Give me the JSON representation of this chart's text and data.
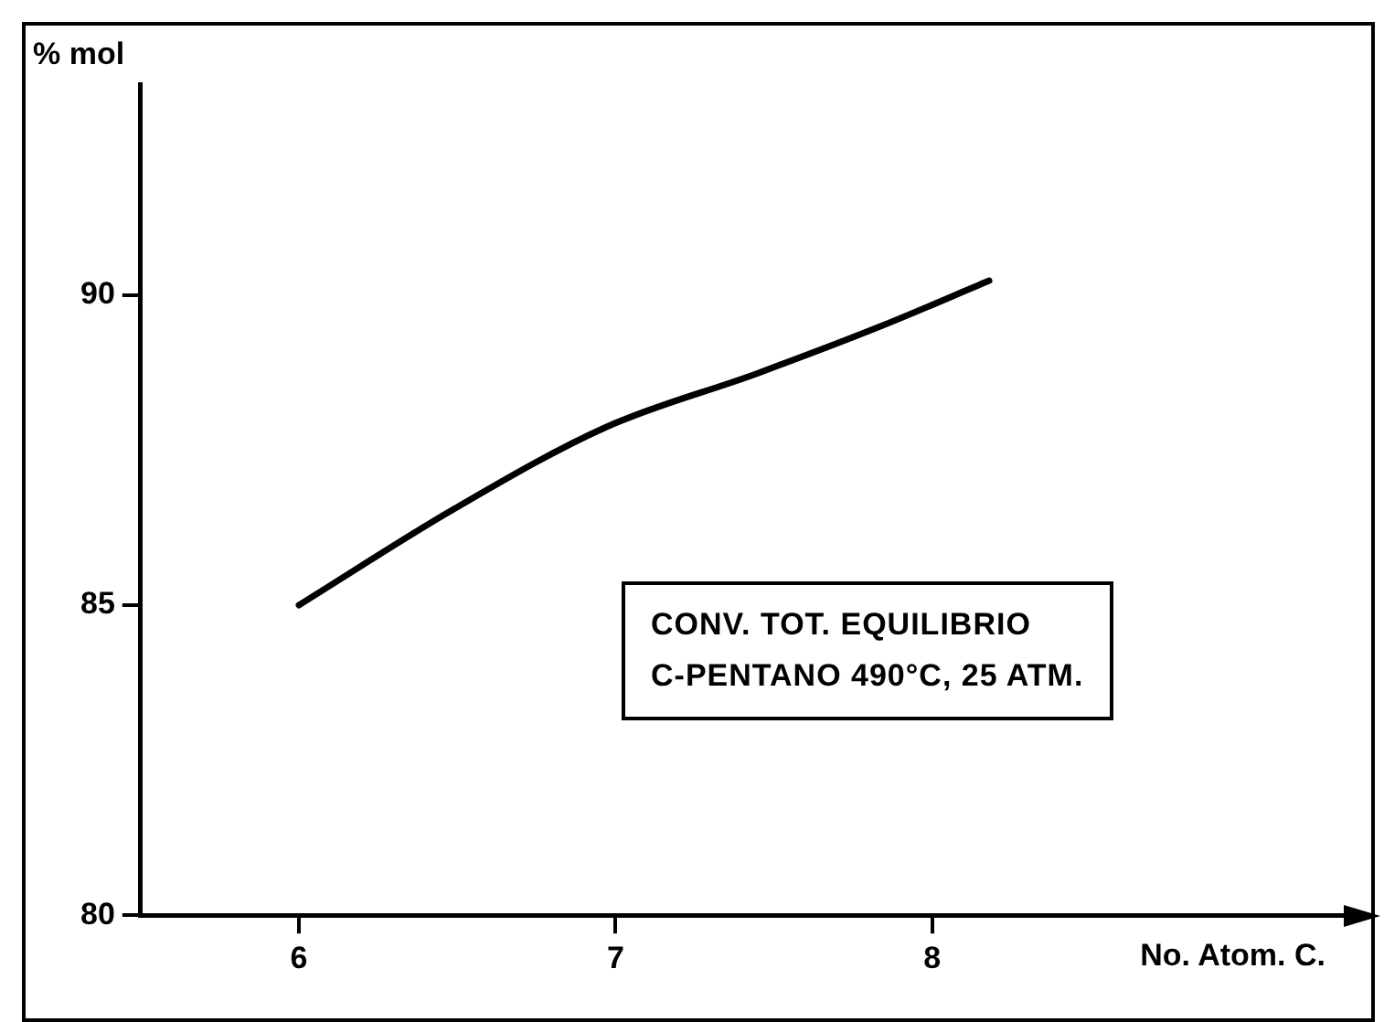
{
  "chart_data": {
    "type": "line",
    "xlabel": "No. Atom. C.",
    "ylabel": "% mol",
    "annotations": [
      "CONV. TOT. EQUILIBRIO",
      "C-PENTANO 490°C, 25 ATM."
    ],
    "series": [
      {
        "color": "#000000",
        "x": [
          6.0,
          6.49,
          6.97,
          7.45,
          7.84,
          8.18
        ],
        "values": [
          85.0,
          86.55,
          87.87,
          88.74,
          89.5,
          90.23
        ]
      }
    ],
    "xlim": [
      5.5,
      9.3
    ],
    "xticks": [
      6,
      7,
      8
    ],
    "ylim": [
      80,
      93.4
    ],
    "yticks": [
      80,
      85,
      90
    ],
    "grid": false,
    "legend": false,
    "marker": "none",
    "line_style": "solid"
  }
}
